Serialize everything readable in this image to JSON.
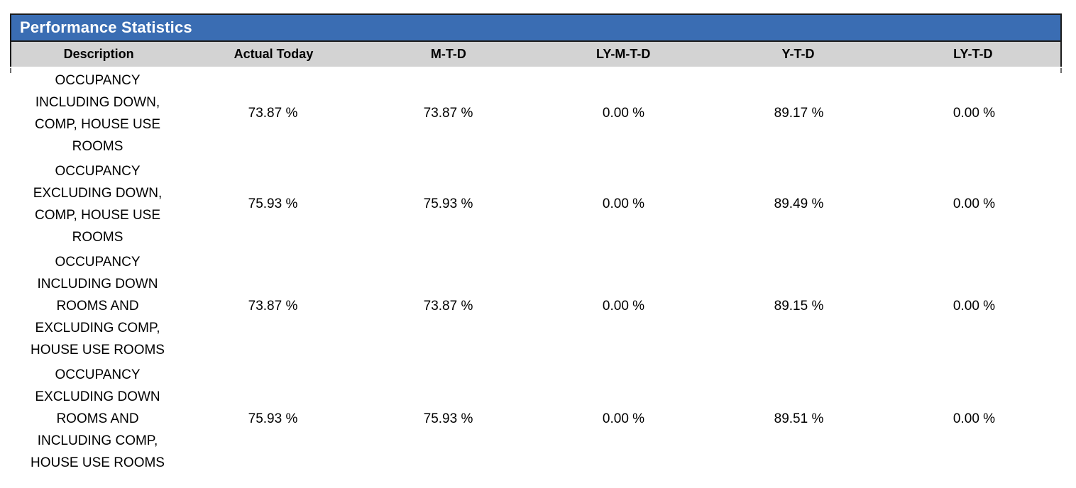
{
  "report_title": "Performance Statistics",
  "colors": {
    "title_bg": "#3a6db3",
    "header_bg": "#d3d3d3",
    "border": "#1b1b1b"
  },
  "chart_data": {
    "type": "table",
    "title": "Performance Statistics",
    "columns": [
      "Description",
      "Actual Today",
      "M-T-D",
      "LY-M-T-D",
      "Y-T-D",
      "LY-T-D"
    ],
    "rows": [
      {
        "description": "OCCUPANCY\nINCLUDING DOWN,\nCOMP, HOUSE USE\nROOMS",
        "values": [
          "73.87 %",
          "73.87 %",
          "0.00 %",
          "89.17 %",
          "0.00 %"
        ]
      },
      {
        "description": "OCCUPANCY\nEXCLUDING DOWN,\nCOMP, HOUSE USE\nROOMS",
        "values": [
          "75.93 %",
          "75.93 %",
          "0.00 %",
          "89.49 %",
          "0.00 %"
        ]
      },
      {
        "description": "OCCUPANCY\nINCLUDING DOWN\nROOMS AND\nEXCLUDING COMP,\nHOUSE USE ROOMS",
        "values": [
          "73.87 %",
          "73.87 %",
          "0.00 %",
          "89.15 %",
          "0.00 %"
        ]
      },
      {
        "description": "OCCUPANCY\nEXCLUDING DOWN\nROOMS AND\nINCLUDING COMP,\nHOUSE USE ROOMS",
        "values": [
          "75.93 %",
          "75.93 %",
          "0.00 %",
          "89.51 %",
          "0.00 %"
        ]
      }
    ]
  }
}
